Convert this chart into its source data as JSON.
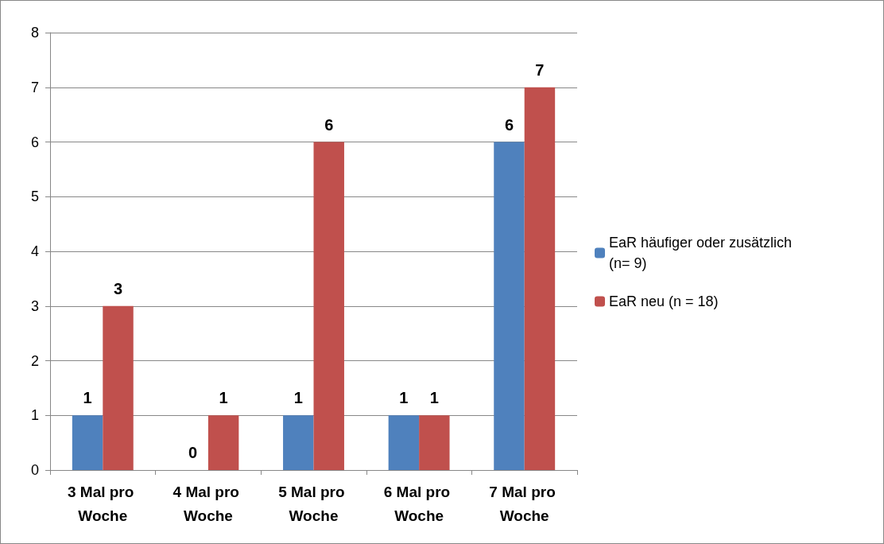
{
  "chart_data": {
    "type": "bar",
    "categories": [
      "3 Mal pro Woche",
      "4 Mal pro Woche",
      "5 Mal pro Woche",
      "6 Mal pro Woche",
      "7 Mal pro Woche"
    ],
    "series": [
      {
        "name": "EaR häufiger oder zusätzlich (n= 9)",
        "color": "#4f81bd",
        "values": [
          1,
          0,
          1,
          1,
          6
        ]
      },
      {
        "name": "EaR neu (n = 18)",
        "color": "#c0504d",
        "values": [
          3,
          1,
          6,
          1,
          7
        ]
      }
    ],
    "ylim": [
      0,
      8
    ],
    "yticks": [
      0,
      1,
      2,
      3,
      4,
      5,
      6,
      7,
      8
    ],
    "grid": "y",
    "legend": "right",
    "data_labels": true
  }
}
